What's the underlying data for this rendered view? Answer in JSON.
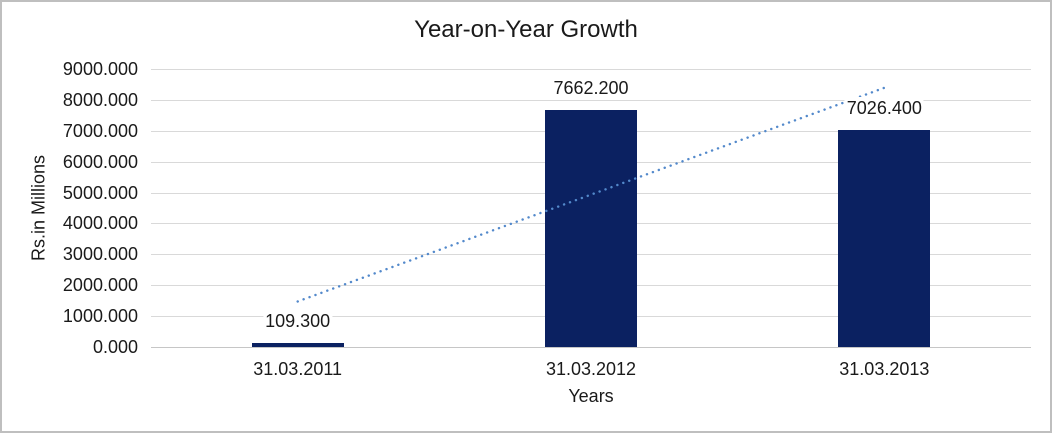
{
  "frame": {
    "background": "#ffffff",
    "border_color": "#bfbfbf"
  },
  "chart_data": {
    "type": "bar",
    "title": "Year-on-Year Growth",
    "xlabel": "Years",
    "ylabel": "Rs.in Millions",
    "categories": [
      "31.03.2011",
      "31.03.2012",
      "31.03.2013"
    ],
    "values": [
      109.3,
      7662.2,
      7026.4
    ],
    "data_labels": [
      "109.300",
      "7662.200",
      "7026.400"
    ],
    "ylim": [
      0,
      9000
    ],
    "y_tick_step": 1000,
    "y_tick_labels": [
      "0.000",
      "1000.000",
      "2000.000",
      "3000.000",
      "4000.000",
      "5000.000",
      "6000.000",
      "7000.000",
      "8000.000",
      "9000.000"
    ],
    "grid": true,
    "legend": "none",
    "bar_color": "#0b2161",
    "gridline_color": "#d9d9d9",
    "axis_line_color": "#c6c6c6",
    "text_color": "#1a1a1a",
    "trendline": {
      "type": "linear",
      "style": "dotted",
      "color": "#5389cb",
      "start_value": 1474.1,
      "end_value": 8391.2
    }
  }
}
